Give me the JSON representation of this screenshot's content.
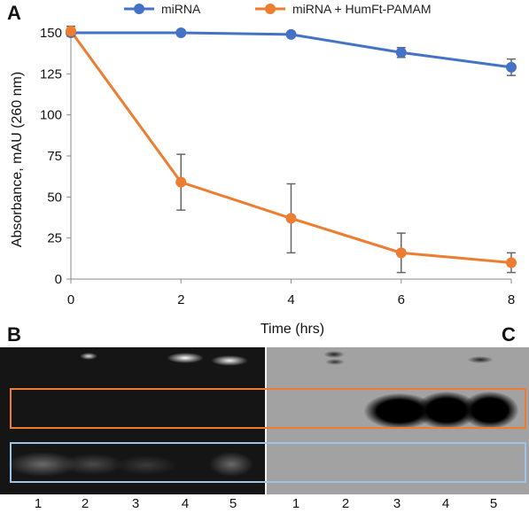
{
  "panels": {
    "a": "A",
    "b": "B",
    "c": "C"
  },
  "chart_data": {
    "type": "line",
    "x": [
      0,
      2,
      4,
      6,
      8
    ],
    "xlabel": "Time (hrs)",
    "ylabel": "Absorbance, mAU (260 nm)",
    "xlim": [
      0,
      8
    ],
    "ylim": [
      0,
      150
    ],
    "xticks": [
      0,
      2,
      4,
      6,
      8
    ],
    "yticks": [
      0,
      25,
      50,
      75,
      100,
      125,
      150
    ],
    "grid": false,
    "legend_position": "top",
    "series": [
      {
        "name": "miRNA",
        "color": "#4472c4",
        "values": [
          150,
          150,
          149,
          138,
          129
        ],
        "errors": [
          0,
          0,
          0,
          3,
          5
        ]
      },
      {
        "name": "miRNA + HumFt-PAMAM",
        "color": "#ed7d31",
        "values": [
          151,
          59,
          37,
          16,
          10
        ],
        "errors": [
          3,
          17,
          21,
          12,
          6
        ]
      }
    ]
  },
  "gel_b": {
    "lanes": [
      "1",
      "2",
      "3",
      "4",
      "5"
    ],
    "box_color": "#ed7d31"
  },
  "gel_c": {
    "lanes": [
      "1",
      "2",
      "3",
      "4",
      "5"
    ],
    "box_color": "#9dc3e6"
  }
}
